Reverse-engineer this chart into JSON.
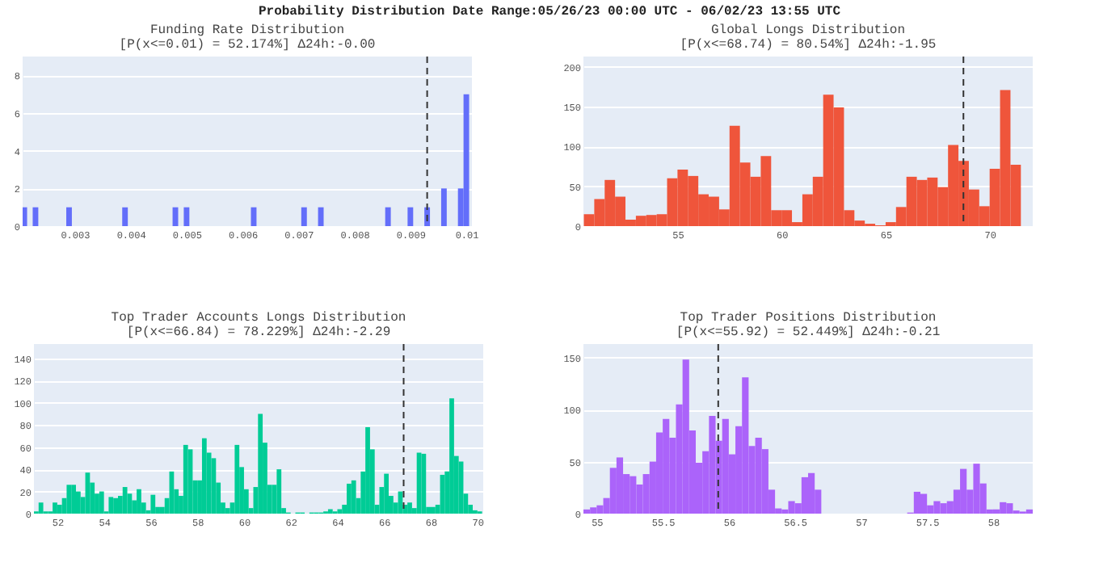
{
  "chart_data": [
    {
      "type": "histogram",
      "title": "Funding Rate Distribution",
      "subtitle": "[P(x<=0.01) = 52.174%]   Δ24h:-0.00",
      "annotations": [
        "Probability Distribution Date Range:05/26/23 00:00 UTC - 06/02/23 13:55 UTC"
      ],
      "bins": [
        0.00205,
        0.00215,
        0.00225,
        0.00235,
        0.00285,
        0.00295,
        0.00385,
        0.00395,
        0.00475,
        0.00485,
        0.00495,
        0.00505,
        0.00615,
        0.00625,
        0.00705,
        0.00715,
        0.00735,
        0.00745,
        0.00855,
        0.00865,
        0.00895,
        0.00905,
        0.00925,
        0.00935,
        0.00955,
        0.00965,
        0.00985,
        0.00995,
        0.01005
      ],
      "values": [
        1,
        0,
        1,
        0,
        1,
        0,
        1,
        0,
        1,
        0,
        1,
        0,
        1,
        0,
        1,
        0,
        1,
        0,
        1,
        0,
        1,
        0,
        1,
        0,
        2,
        0,
        2,
        7
      ],
      "color": "#636efa",
      "xlim": [
        0.00207,
        0.0101
      ],
      "xticks": [
        0.003,
        0.004,
        0.005,
        0.006,
        0.007,
        0.008,
        0.009,
        0.01
      ],
      "ylim": [
        0,
        9
      ],
      "yticks": [
        0,
        2,
        4,
        6,
        8
      ],
      "grid": "y",
      "ref_lines": [
        {
          "axis": "x",
          "value": 0.0093,
          "line_style": "dashed",
          "color": "#333333"
        }
      ]
    },
    {
      "type": "histogram",
      "title": "Global Longs Distribution",
      "subtitle": "[P(x<=68.74) = 80.54%]   Δ24h:-1.95",
      "bins": [
        50.5,
        51,
        51.5,
        52,
        52.5,
        53,
        53.5,
        54,
        54.5,
        55,
        55.5,
        56,
        56.5,
        57,
        57.5,
        58,
        58.5,
        59,
        59.5,
        60,
        60.5,
        61,
        61.5,
        62,
        62.5,
        63,
        63.5,
        64,
        64.5,
        65,
        65.5,
        66,
        66.5,
        67,
        67.5,
        68,
        68.5,
        69,
        69.5,
        70,
        70.5,
        71,
        71.5
      ],
      "values": [
        15,
        34,
        58,
        37,
        8,
        13,
        14,
        15,
        60,
        71,
        63,
        40,
        37,
        21,
        126,
        80,
        62,
        88,
        20,
        20,
        5,
        40,
        62,
        165,
        149,
        20,
        7,
        3,
        1,
        5,
        24,
        62,
        58,
        61,
        49,
        102,
        82,
        46,
        25,
        72,
        171,
        77
      ],
      "color": "#ef553b",
      "xlim": [
        50.48,
        72.07
      ],
      "xticks": [
        55,
        60,
        65,
        70
      ],
      "ylim": [
        0,
        213
      ],
      "yticks": [
        0,
        50,
        100,
        150,
        200
      ],
      "grid": "y",
      "ref_lines": [
        {
          "axis": "x",
          "value": 68.74,
          "line_style": "dashed",
          "color": "#333333"
        }
      ]
    },
    {
      "type": "histogram",
      "title": "Top Trader Accounts Longs Distribution",
      "subtitle": "[P(x<=66.84) = 78.229%]   Δ24h:-2.29",
      "bins": [
        51,
        51.2,
        51.4,
        51.6,
        51.8,
        52,
        52.2,
        52.4,
        52.6,
        52.8,
        53,
        53.2,
        53.4,
        53.6,
        53.8,
        54,
        54.2,
        54.4,
        54.6,
        54.8,
        55,
        55.2,
        55.4,
        55.6,
        55.8,
        56,
        56.2,
        56.4,
        56.6,
        56.8,
        57,
        57.2,
        57.4,
        57.6,
        57.8,
        58,
        58.2,
        58.4,
        58.6,
        58.8,
        59,
        59.2,
        59.4,
        59.6,
        59.8,
        60,
        60.2,
        60.4,
        60.6,
        60.8,
        61,
        61.2,
        61.4,
        61.6,
        61.8,
        62,
        62.2,
        62.4,
        62.6,
        62.8,
        63,
        63.2,
        63.4,
        63.6,
        63.8,
        64,
        64.2,
        64.4,
        64.6,
        64.8,
        65,
        65.2,
        65.4,
        65.6,
        65.8,
        66,
        66.2,
        66.4,
        66.6,
        66.8,
        67,
        67.2,
        67.4,
        67.6,
        67.8,
        68,
        68.2,
        68.4,
        68.6,
        68.8,
        69,
        69.2,
        69.4,
        69.6,
        69.8,
        70,
        70.2
      ],
      "values": [
        2,
        10,
        2,
        2,
        10,
        8,
        14,
        26,
        26,
        20,
        15,
        37,
        28,
        18,
        20,
        2,
        15,
        14,
        16,
        24,
        18,
        12,
        22,
        10,
        3,
        17,
        6,
        6,
        14,
        38,
        22,
        16,
        62,
        58,
        30,
        30,
        68,
        55,
        50,
        28,
        10,
        5,
        10,
        62,
        42,
        22,
        5,
        24,
        90,
        64,
        26,
        26,
        40,
        5,
        1,
        0,
        1,
        1,
        0,
        1,
        1,
        1,
        2,
        4,
        2,
        4,
        8,
        27,
        30,
        14,
        38,
        78,
        58,
        8,
        24,
        36,
        16,
        10,
        20,
        8,
        10,
        5,
        55,
        54,
        6,
        6,
        8,
        35,
        38,
        104,
        52,
        47,
        18,
        8,
        3,
        2
      ],
      "color": "#00cc96",
      "xlim": [
        51,
        70.25
      ],
      "xticks": [
        52,
        54,
        56,
        58,
        60,
        62,
        64,
        66,
        68,
        70
      ],
      "ylim": [
        0,
        153
      ],
      "yticks": [
        0,
        20,
        40,
        60,
        80,
        100,
        120,
        140
      ],
      "grid": "y",
      "ref_lines": [
        {
          "axis": "x",
          "value": 66.84,
          "line_style": "dashed",
          "color": "#333333"
        }
      ]
    },
    {
      "type": "histogram",
      "title": "Top Trader Positions Distribution",
      "subtitle": "[P(x<=55.92) = 52.449%]   Δ24h:-0.21",
      "bins": [
        54.9,
        54.95,
        55,
        55.05,
        55.1,
        55.15,
        55.2,
        55.25,
        55.3,
        55.35,
        55.4,
        55.45,
        55.5,
        55.55,
        55.6,
        55.65,
        55.7,
        55.75,
        55.8,
        55.85,
        55.9,
        55.95,
        56,
        56.05,
        56.1,
        56.15,
        56.2,
        56.25,
        56.3,
        56.35,
        56.4,
        56.45,
        56.5,
        56.55,
        56.6,
        56.65,
        56.7,
        57.35,
        57.4,
        57.45,
        57.5,
        57.55,
        57.6,
        57.65,
        57.7,
        57.75,
        57.8,
        57.85,
        57.9,
        57.95,
        58,
        58.05,
        58.1,
        58.15,
        58.2,
        58.25,
        58.3
      ],
      "values": [
        4,
        6,
        8,
        15,
        44,
        54,
        38,
        36,
        28,
        38,
        50,
        78,
        91,
        73,
        105,
        148,
        80,
        49,
        60,
        94,
        70,
        91,
        57,
        84,
        131,
        65,
        73,
        62,
        23,
        5,
        4,
        12,
        10,
        35,
        39,
        23,
        0,
        1,
        21,
        19,
        8,
        12,
        10,
        12,
        23,
        43,
        23,
        48,
        29,
        4,
        4,
        11,
        10,
        3,
        2,
        4
      ],
      "color": "#ab63fa",
      "xlim": [
        54.9,
        58.3
      ],
      "xticks": [
        55,
        55.5,
        56,
        56.5,
        57,
        57.5,
        58
      ],
      "ylim": [
        0,
        163
      ],
      "yticks": [
        0,
        50,
        100,
        150
      ],
      "grid": "y",
      "ref_lines": [
        {
          "axis": "x",
          "value": 55.92,
          "line_style": "dashed",
          "color": "#333333"
        }
      ]
    }
  ]
}
